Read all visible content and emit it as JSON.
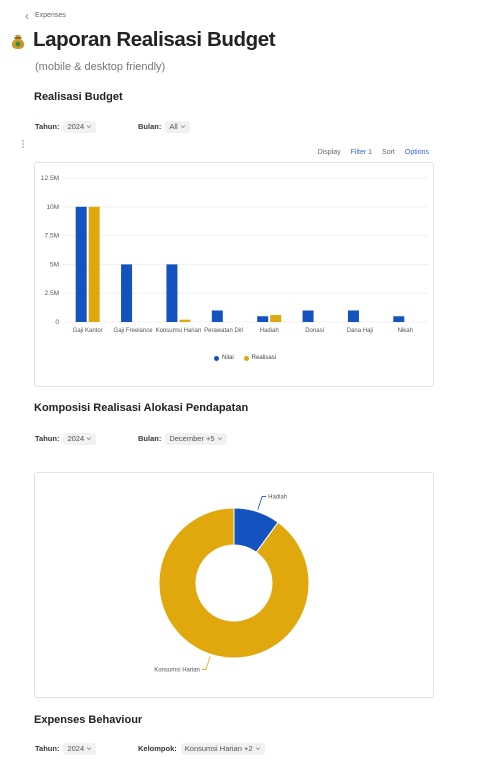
{
  "breadcrumb": "Expenses",
  "title": "Laporan Realisasi Budget",
  "subtitle": "(mobile & desktop friendly)",
  "sections": [
    {
      "heading": "Realisasi Budget",
      "filters": [
        {
          "label": "Tahun:",
          "value": "2024"
        },
        {
          "label": "Bulan:",
          "value": "All"
        }
      ],
      "toolbar": [
        "Display",
        "Filter 1",
        "Sort",
        "Options"
      ]
    },
    {
      "heading": "Komposisi Realisasi Alokasi Pendapatan",
      "filters": [
        {
          "label": "Tahun:",
          "value": "2024"
        },
        {
          "label": "Bulan:",
          "value": "December +5"
        }
      ]
    },
    {
      "heading": "Expenses Behaviour",
      "filters": [
        {
          "label": "Tahun:",
          "value": "2024"
        },
        {
          "label": "Kelompok:",
          "value": "Konsumsi Harian +2"
        }
      ]
    }
  ],
  "chart_data": [
    {
      "type": "bar",
      "categories": [
        "Gaji Kantor",
        "Gaji Freelance",
        "Konsumsi Harian",
        "Perawatan Diri",
        "Hadiah",
        "Donasi",
        "Dana Haji",
        "Nikah"
      ],
      "series": [
        {
          "name": "Nilai",
          "color": "#1452c0",
          "values": [
            10000000,
            5000000,
            5000000,
            1000000,
            500000,
            1000000,
            1000000,
            500000
          ]
        },
        {
          "name": "Realisasi",
          "color": "#e0a80c",
          "values": [
            10000000,
            null,
            200000,
            null,
            600000,
            null,
            null,
            null
          ]
        }
      ],
      "ylim": [
        0,
        12500000
      ],
      "yticks": [
        0,
        {
          "value": 2500000,
          "label": "2.5M"
        },
        {
          "value": 5000000,
          "label": "5M"
        },
        {
          "value": 7500000,
          "label": "7.5M"
        },
        {
          "value": 10000000,
          "label": "10M"
        },
        {
          "value": 12500000,
          "label": "12.5M"
        }
      ],
      "grid": true,
      "legend": "bottom"
    },
    {
      "type": "pie",
      "categories": [
        "Hadiah",
        "Konsumsi Harian"
      ],
      "values": [
        10,
        90
      ],
      "colors": [
        "#1452c0",
        "#e0a80c"
      ],
      "donut": true
    }
  ]
}
